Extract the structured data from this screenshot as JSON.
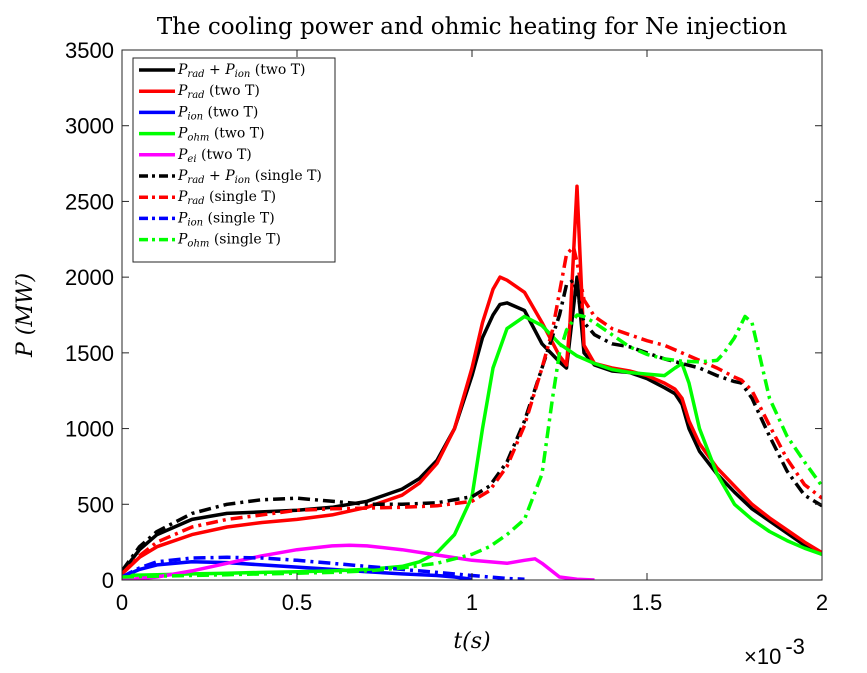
{
  "chart_data": {
    "type": "line",
    "title": "The cooling power and ohmic heating for Ne injection",
    "xlabel": "t(s)",
    "ylabel": "P (MW)",
    "x_exponent_label": "×10",
    "x_exponent_power": "-3",
    "xlim": [
      0,
      2
    ],
    "ylim": [
      0,
      3500
    ],
    "x_ticks": [
      0,
      0.5,
      1,
      1.5,
      2
    ],
    "x_tick_labels": [
      "0",
      "0.5",
      "1",
      "1.5",
      "2"
    ],
    "y_ticks": [
      0,
      500,
      1000,
      1500,
      2000,
      2500,
      3000,
      3500
    ],
    "y_tick_labels": [
      "0",
      "500",
      "1000",
      "1500",
      "2000",
      "2500",
      "3000",
      "3500"
    ],
    "grid": false,
    "legend_position": "top-left",
    "series": [
      {
        "name": "P_rad + P_ion (two T)",
        "legend_main": "P",
        "legend_sub": "rad",
        "legend_plus": " + P",
        "legend_sub2": "ion",
        "legend_suffix": " (two T)",
        "color": "#000000",
        "dash": "solid",
        "x": [
          0,
          0.05,
          0.1,
          0.2,
          0.3,
          0.4,
          0.5,
          0.6,
          0.7,
          0.8,
          0.85,
          0.9,
          0.95,
          1.0,
          1.03,
          1.06,
          1.08,
          1.1,
          1.15,
          1.2,
          1.25,
          1.27,
          1.28,
          1.3,
          1.32,
          1.35,
          1.4,
          1.45,
          1.5,
          1.55,
          1.58,
          1.6,
          1.62,
          1.65,
          1.7,
          1.75,
          1.8,
          1.85,
          1.9,
          1.95,
          2.0
        ],
        "y": [
          50,
          200,
          300,
          400,
          440,
          450,
          460,
          480,
          520,
          600,
          670,
          790,
          1000,
          1350,
          1600,
          1750,
          1820,
          1830,
          1780,
          1560,
          1440,
          1400,
          1600,
          2000,
          1500,
          1420,
          1380,
          1370,
          1330,
          1270,
          1230,
          1160,
          1000,
          850,
          700,
          580,
          470,
          390,
          310,
          230,
          170
        ]
      },
      {
        "name": "P_rad (two T)",
        "legend_main": "P",
        "legend_sub": "rad",
        "legend_plus": "",
        "legend_sub2": "",
        "legend_suffix": " (two T)",
        "color": "#ff0000",
        "dash": "solid",
        "x": [
          0,
          0.05,
          0.1,
          0.2,
          0.3,
          0.4,
          0.5,
          0.6,
          0.7,
          0.8,
          0.85,
          0.9,
          0.95,
          1.0,
          1.03,
          1.06,
          1.08,
          1.1,
          1.15,
          1.2,
          1.25,
          1.27,
          1.28,
          1.3,
          1.32,
          1.35,
          1.4,
          1.45,
          1.5,
          1.55,
          1.58,
          1.6,
          1.62,
          1.65,
          1.7,
          1.75,
          1.8,
          1.85,
          1.9,
          1.95,
          2.0
        ],
        "y": [
          40,
          150,
          220,
          300,
          350,
          380,
          400,
          430,
          480,
          560,
          640,
          770,
          1000,
          1400,
          1700,
          1920,
          2000,
          1980,
          1900,
          1700,
          1480,
          1420,
          1700,
          2600,
          1550,
          1430,
          1400,
          1380,
          1350,
          1300,
          1260,
          1200,
          1050,
          900,
          740,
          620,
          500,
          410,
          330,
          250,
          180
        ]
      },
      {
        "name": "P_ion (two T)",
        "legend_main": "P",
        "legend_sub": "ion",
        "legend_plus": "",
        "legend_sub2": "",
        "legend_suffix": " (two T)",
        "color": "#0000ff",
        "dash": "solid",
        "x": [
          0,
          0.05,
          0.1,
          0.2,
          0.3,
          0.4,
          0.5,
          0.6,
          0.7,
          0.8,
          0.9,
          0.95,
          1.0
        ],
        "y": [
          20,
          70,
          100,
          120,
          115,
          100,
          85,
          70,
          55,
          40,
          30,
          20,
          5
        ]
      },
      {
        "name": "P_ohm (two T)",
        "legend_main": "P",
        "legend_sub": "ohm",
        "legend_plus": "",
        "legend_sub2": "",
        "legend_suffix": " (two T)",
        "color": "#00ff00",
        "dash": "solid",
        "x": [
          0,
          0.1,
          0.2,
          0.3,
          0.4,
          0.5,
          0.6,
          0.7,
          0.8,
          0.85,
          0.9,
          0.95,
          1.0,
          1.03,
          1.06,
          1.1,
          1.15,
          1.2,
          1.25,
          1.3,
          1.35,
          1.4,
          1.45,
          1.5,
          1.55,
          1.58,
          1.6,
          1.62,
          1.65,
          1.7,
          1.75,
          1.8,
          1.85,
          1.9,
          1.95,
          2.0
        ],
        "y": [
          30,
          35,
          40,
          45,
          50,
          55,
          60,
          70,
          90,
          120,
          180,
          300,
          550,
          1000,
          1400,
          1660,
          1740,
          1680,
          1560,
          1480,
          1430,
          1390,
          1370,
          1360,
          1350,
          1400,
          1430,
          1300,
          1000,
          700,
          500,
          400,
          320,
          260,
          210,
          170
        ]
      },
      {
        "name": "P_ei (two T)",
        "legend_main": "P",
        "legend_sub": "ei",
        "legend_plus": "",
        "legend_sub2": "",
        "legend_suffix": " (two T)",
        "color": "#ff00ff",
        "dash": "solid",
        "x": [
          0,
          0.1,
          0.2,
          0.3,
          0.4,
          0.5,
          0.6,
          0.65,
          0.7,
          0.8,
          0.9,
          1.0,
          1.1,
          1.15,
          1.18,
          1.2,
          1.25,
          1.3,
          1.35
        ],
        "y": [
          0,
          20,
          60,
          110,
          160,
          200,
          225,
          230,
          225,
          200,
          165,
          130,
          110,
          130,
          140,
          110,
          20,
          5,
          0
        ]
      },
      {
        "name": "P_rad + P_ion (single T)",
        "legend_main": "P",
        "legend_sub": "rad",
        "legend_plus": " + P",
        "legend_sub2": "ion",
        "legend_suffix": " (single T)",
        "color": "#000000",
        "dash": "dashdot",
        "x": [
          0,
          0.05,
          0.1,
          0.2,
          0.3,
          0.4,
          0.5,
          0.6,
          0.7,
          0.8,
          0.9,
          1.0,
          1.05,
          1.1,
          1.15,
          1.2,
          1.25,
          1.27,
          1.29,
          1.3,
          1.32,
          1.35,
          1.4,
          1.45,
          1.5,
          1.55,
          1.6,
          1.65,
          1.7,
          1.75,
          1.77,
          1.8,
          1.85,
          1.9,
          1.95,
          2.0
        ],
        "y": [
          60,
          220,
          320,
          440,
          500,
          530,
          540,
          520,
          500,
          500,
          510,
          550,
          620,
          780,
          1050,
          1400,
          1750,
          1950,
          1980,
          1900,
          1700,
          1620,
          1560,
          1540,
          1500,
          1460,
          1430,
          1400,
          1350,
          1310,
          1300,
          1200,
          950,
          720,
          560,
          490
        ]
      },
      {
        "name": "P_rad (single T)",
        "legend_main": "P",
        "legend_sub": "rad",
        "legend_plus": "",
        "legend_sub2": "",
        "legend_suffix": " (single T)",
        "color": "#ff0000",
        "dash": "dashdot",
        "x": [
          0,
          0.05,
          0.1,
          0.2,
          0.3,
          0.4,
          0.5,
          0.6,
          0.7,
          0.8,
          0.9,
          1.0,
          1.05,
          1.1,
          1.15,
          1.2,
          1.23,
          1.25,
          1.27,
          1.29,
          1.3,
          1.32,
          1.35,
          1.4,
          1.45,
          1.5,
          1.55,
          1.6,
          1.65,
          1.7,
          1.75,
          1.77,
          1.8,
          1.85,
          1.9,
          1.95,
          2.0
        ],
        "y": [
          40,
          160,
          250,
          350,
          400,
          430,
          460,
          470,
          475,
          480,
          490,
          520,
          590,
          750,
          1020,
          1400,
          1650,
          1900,
          2150,
          2200,
          2100,
          1850,
          1740,
          1660,
          1620,
          1580,
          1550,
          1500,
          1450,
          1400,
          1340,
          1320,
          1250,
          1020,
          800,
          630,
          540
        ]
      },
      {
        "name": "P_ion (single T)",
        "legend_main": "P",
        "legend_sub": "ion",
        "legend_plus": "",
        "legend_sub2": "",
        "legend_suffix": " (single T)",
        "color": "#0000ff",
        "dash": "dashdot",
        "x": [
          0,
          0.05,
          0.1,
          0.2,
          0.3,
          0.4,
          0.5,
          0.6,
          0.7,
          0.8,
          0.9,
          1.0,
          1.05,
          1.1,
          1.15
        ],
        "y": [
          20,
          80,
          120,
          145,
          150,
          145,
          130,
          110,
          90,
          70,
          50,
          30,
          20,
          10,
          5
        ]
      },
      {
        "name": "P_ohm (single T)",
        "legend_main": "P",
        "legend_sub": "ohm",
        "legend_plus": "",
        "legend_sub2": "",
        "legend_suffix": " (single T)",
        "color": "#00ff00",
        "dash": "dashdot",
        "x": [
          0,
          0.1,
          0.2,
          0.3,
          0.4,
          0.5,
          0.6,
          0.7,
          0.8,
          0.9,
          1.0,
          1.05,
          1.1,
          1.15,
          1.2,
          1.23,
          1.25,
          1.27,
          1.3,
          1.32,
          1.35,
          1.4,
          1.45,
          1.5,
          1.55,
          1.6,
          1.65,
          1.7,
          1.72,
          1.75,
          1.78,
          1.8,
          1.85,
          1.9,
          1.95,
          2.0
        ],
        "y": [
          20,
          25,
          30,
          35,
          40,
          45,
          50,
          60,
          80,
          110,
          170,
          220,
          300,
          400,
          700,
          1200,
          1500,
          1650,
          1750,
          1740,
          1700,
          1620,
          1540,
          1490,
          1460,
          1445,
          1440,
          1450,
          1500,
          1600,
          1740,
          1700,
          1200,
          950,
          780,
          620
        ]
      }
    ]
  }
}
